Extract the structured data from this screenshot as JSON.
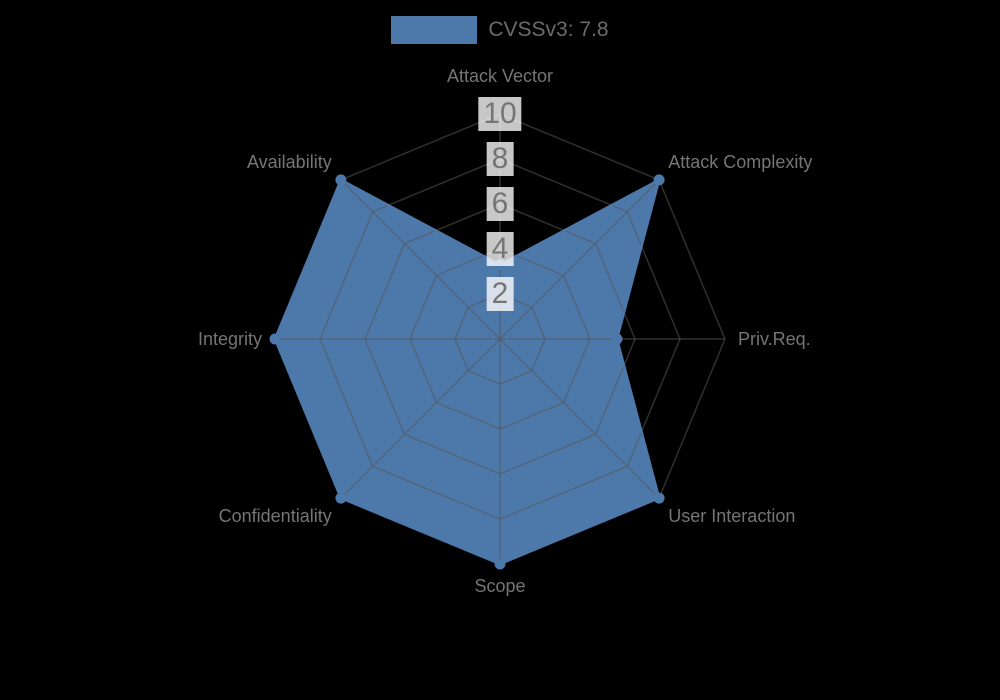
{
  "chart_data": {
    "type": "radar",
    "title": "",
    "categories": [
      "Attack Vector",
      "Attack Complexity",
      "Priv.Req.",
      "User Interaction",
      "Scope",
      "Confidentiality",
      "Integrity",
      "Availability"
    ],
    "series": [
      {
        "name": "CVSSv3: 7.8",
        "values": [
          3.3,
          10,
          5.2,
          10,
          10,
          10,
          10,
          10
        ],
        "color": "#4d78aa"
      }
    ],
    "scale": {
      "min": 0,
      "max": 10,
      "tick_step": 2,
      "tick_labels": [
        "2",
        "4",
        "6",
        "8",
        "10"
      ]
    },
    "grid": {
      "shape": "polygon",
      "ring_count": 5,
      "line_color": "#565656",
      "line_opacity": 0.55
    },
    "style": {
      "background_color": "#000000",
      "axis_label_color": "#757575",
      "tick_text_color": "#757575",
      "tick_backdrop_color": "rgba(255,255,255,0.78)",
      "legend_text_color": "#6b6b6b"
    },
    "legend_position": "top"
  }
}
